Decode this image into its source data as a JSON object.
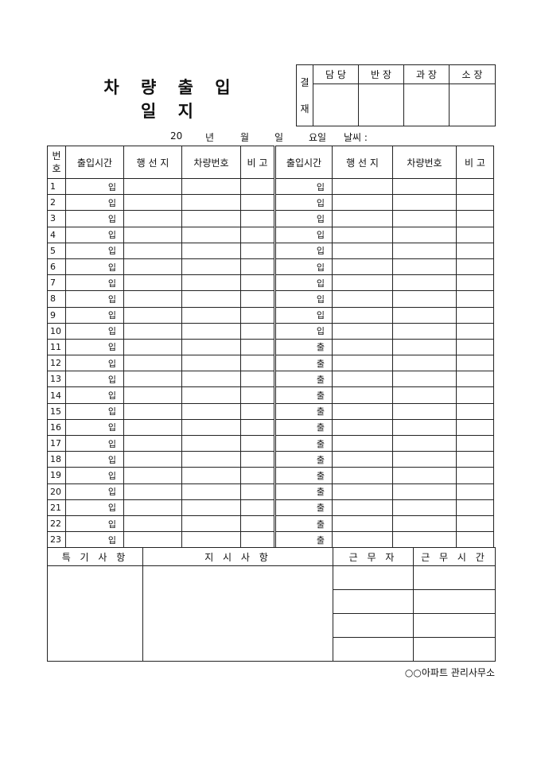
{
  "title": "차 량 출 입 일 지",
  "approval": {
    "side_label_top": "결",
    "side_label_bottom": "재",
    "roles": [
      "담 당",
      "반 장",
      "과 장",
      "소 장"
    ]
  },
  "dateline": {
    "year_prefix": "20",
    "year": "년",
    "month": "월",
    "day": "일",
    "weekday": "요일",
    "weather": "날씨 :"
  },
  "log": {
    "headers": [
      "번\n호",
      "출입시간",
      "행 선 지",
      "차량번호",
      "비 고",
      "출입시간",
      "행 선 지",
      "차량번호",
      "비 고"
    ],
    "rows": [
      {
        "no": "1",
        "left": "입",
        "right": "입"
      },
      {
        "no": "2",
        "left": "입",
        "right": "입"
      },
      {
        "no": "3",
        "left": "입",
        "right": "입"
      },
      {
        "no": "4",
        "left": "입",
        "right": "입"
      },
      {
        "no": "5",
        "left": "입",
        "right": "입"
      },
      {
        "no": "6",
        "left": "입",
        "right": "입"
      },
      {
        "no": "7",
        "left": "입",
        "right": "입"
      },
      {
        "no": "8",
        "left": "입",
        "right": "입"
      },
      {
        "no": "9",
        "left": "입",
        "right": "입"
      },
      {
        "no": "10",
        "left": "입",
        "right": "입"
      },
      {
        "no": "11",
        "left": "입",
        "right": "출"
      },
      {
        "no": "12",
        "left": "입",
        "right": "출"
      },
      {
        "no": "13",
        "left": "입",
        "right": "출"
      },
      {
        "no": "14",
        "left": "입",
        "right": "출"
      },
      {
        "no": "15",
        "left": "입",
        "right": "출"
      },
      {
        "no": "16",
        "left": "입",
        "right": "출"
      },
      {
        "no": "17",
        "left": "입",
        "right": "출"
      },
      {
        "no": "18",
        "left": "입",
        "right": "출"
      },
      {
        "no": "19",
        "left": "입",
        "right": "출"
      },
      {
        "no": "20",
        "left": "입",
        "right": "출"
      },
      {
        "no": "21",
        "left": "입",
        "right": "출"
      },
      {
        "no": "22",
        "left": "입",
        "right": "출"
      },
      {
        "no": "23",
        "left": "입",
        "right": "출"
      }
    ]
  },
  "bottom": {
    "special_notes": "특 기 사 항",
    "instructions": "지 시 사 항",
    "worker": "근 무 자",
    "work_hours": "근 무 시 간"
  },
  "footer": "○○아파트 관리사무소"
}
